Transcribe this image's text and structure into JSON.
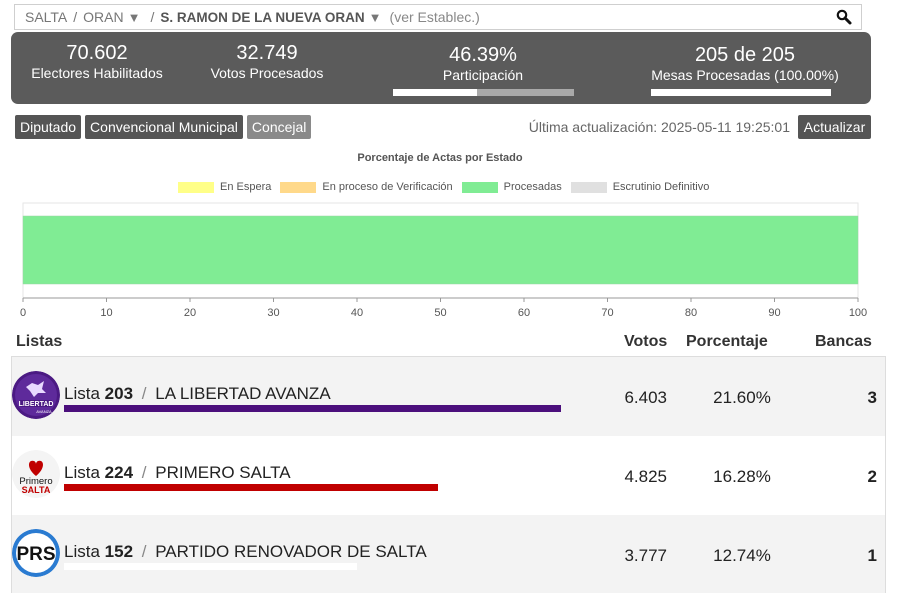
{
  "breadcrumb": {
    "province": "SALTA",
    "department": "ORAN",
    "municipality": "S. RAMON DE LA NUEVA ORAN",
    "hint": "(ver Establec.)",
    "arrow": "▼",
    "separator": "/"
  },
  "stats": {
    "electores": {
      "value": "70.602",
      "label": "Electores Habilitados"
    },
    "votos": {
      "value": "32.749",
      "label": "Votos Procesados"
    },
    "participacion": {
      "value": "46.39%",
      "label": "Participación",
      "fraction": 0.4639
    },
    "mesas": {
      "value": "205 de 205",
      "label": "Mesas Procesadas (100.00%)",
      "fraction": 1.0
    }
  },
  "tabs": [
    {
      "label": "Diputado",
      "active": false
    },
    {
      "label": "Convencional Municipal",
      "active": false
    },
    {
      "label": "Concejal",
      "active": true
    }
  ],
  "updated": "Última actualización: 2025-05-11 19:25:01",
  "refresh_label": "Actualizar",
  "chart_data": {
    "type": "bar",
    "orientation": "horizontal",
    "stacked": true,
    "title": "Porcentaje de Actas por Estado",
    "legend": [
      {
        "name": "En Espera",
        "color": "#ffff88"
      },
      {
        "name": "En proceso de Verificación",
        "color": "#ffd98a"
      },
      {
        "name": "Procesadas",
        "color": "#80ec94"
      },
      {
        "name": "Escrutinio Definitivo",
        "color": "#e0e0e0"
      }
    ],
    "series": [
      {
        "name": "En Espera",
        "values": [
          0
        ]
      },
      {
        "name": "En proceso de Verificación",
        "values": [
          0
        ]
      },
      {
        "name": "Procesadas",
        "values": [
          100
        ]
      },
      {
        "name": "Escrutinio Definitivo",
        "values": [
          0
        ]
      }
    ],
    "xlim": [
      0,
      100
    ],
    "xticks": [
      0,
      10,
      20,
      30,
      40,
      50,
      60,
      70,
      80,
      90,
      100
    ],
    "legend_position": "top"
  },
  "table": {
    "headers": {
      "listas": "Listas",
      "votos": "Votos",
      "porcentaje": "Porcentaje",
      "bancas": "Bancas"
    },
    "rows": [
      {
        "lista_prefix": "Lista",
        "numero": "203",
        "nombre": "LA LIBERTAD AVANZA",
        "votos": "6.403",
        "porcentaje": "21.60%",
        "bancas": "3",
        "share": 0.216,
        "color": "#4b0f7c",
        "logo": "libertad-avanza-logo"
      },
      {
        "lista_prefix": "Lista",
        "numero": "224",
        "nombre": "PRIMERO SALTA",
        "votos": "4.825",
        "porcentaje": "16.28%",
        "bancas": "2",
        "share": 0.1628,
        "color": "#c00000",
        "logo": "primero-salta-logo"
      },
      {
        "lista_prefix": "Lista",
        "numero": "152",
        "nombre": "PARTIDO RENOVADOR DE SALTA",
        "votos": "3.777",
        "porcentaje": "12.74%",
        "bancas": "1",
        "share": 0.1274,
        "color": "#ffffff",
        "logo": "prs-logo"
      }
    ]
  }
}
